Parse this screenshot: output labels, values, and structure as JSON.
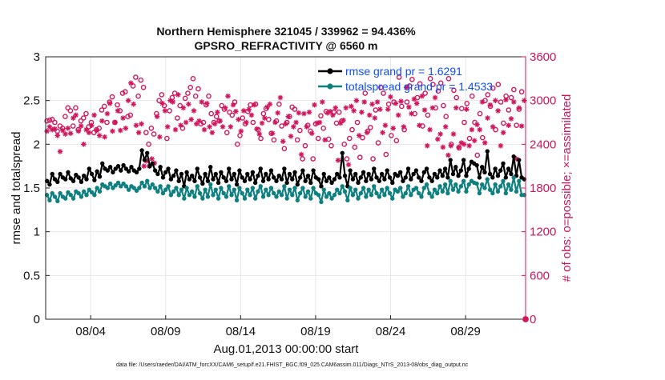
{
  "chart_data": {
    "type": "line",
    "title_line1": "Northern Hemisphere 321045 / 339962 = 94.436%",
    "title_line2": "GPSRO_REFRACTIVITY @ 6560 m",
    "xlabel": "Aug.01,2013 00:00:00 start",
    "ylabel_left": "rmse and totalspread",
    "ylabel_right": "# of obs: o=possible; ×=assimilated",
    "footer": "data file: /Users/raeder/DAI/ATM_forcXX/CAM6_setup/f.e21.FHIST_BGC.f09_025.CAM6assim.011/Diags_NTrS_2013-08/obs_diag_output.nc",
    "xlim": [
      0,
      32
    ],
    "ylim_left": [
      0,
      3
    ],
    "ylim_right": [
      0,
      3600
    ],
    "x_ticks": [
      3,
      8,
      13,
      18,
      23,
      28
    ],
    "x_tick_labels": [
      "08/04",
      "08/09",
      "08/14",
      "08/19",
      "08/24",
      "08/29"
    ],
    "y_ticks_left": [
      0,
      0.5,
      1,
      1.5,
      2,
      2.5,
      3
    ],
    "y_tick_labels_left": [
      "0",
      "0.5",
      "1",
      "1.5",
      "2",
      "2.5",
      "3"
    ],
    "y_ticks_right": [
      0,
      600,
      1200,
      1800,
      2400,
      3000,
      3600
    ],
    "y_tick_labels_right": [
      "0",
      "600",
      "1200",
      "1800",
      "2400",
      "3000",
      "3600"
    ],
    "legend_position": "top-right",
    "colors": {
      "rmse": "#000000",
      "spread": "#0f8080",
      "obs": "#d0175d",
      "grid": "#e6e6e6",
      "legend_text": "#0c4dff"
    },
    "series": [
      {
        "name": "rmse grand pr = 1.6291",
        "axis": "left",
        "style": "line-dot",
        "values": [
          1.58,
          1.54,
          1.66,
          1.6,
          1.57,
          1.66,
          1.62,
          1.6,
          1.68,
          1.61,
          1.58,
          1.65,
          1.62,
          1.57,
          1.64,
          1.6,
          1.72,
          1.66,
          1.59,
          1.69,
          1.63,
          1.78,
          1.72,
          1.7,
          1.74,
          1.68,
          1.72,
          1.75,
          1.7,
          1.76,
          1.72,
          1.69,
          1.74,
          1.7,
          1.68,
          1.72,
          1.93,
          1.82,
          1.9,
          1.75,
          1.78,
          1.7,
          1.66,
          1.74,
          1.62,
          1.68,
          1.72,
          1.6,
          1.64,
          1.7,
          1.58,
          1.66,
          1.52,
          1.68,
          1.6,
          1.64,
          1.58,
          1.72,
          1.62,
          1.55,
          1.66,
          1.58,
          1.74,
          1.6,
          1.66,
          1.56,
          1.68,
          1.62,
          1.58,
          1.72,
          1.6,
          1.66,
          1.54,
          1.7,
          1.62,
          1.58,
          1.66,
          1.6,
          1.68,
          1.56,
          1.64,
          1.72,
          1.58,
          1.66,
          1.6,
          1.7,
          1.62,
          1.58,
          1.64,
          1.6,
          1.72,
          1.56,
          1.66,
          1.6,
          1.68,
          1.54,
          1.62,
          1.7,
          1.58,
          1.64,
          1.56,
          1.7,
          1.62,
          1.6,
          1.52,
          1.66,
          1.58,
          1.62,
          1.56,
          1.6,
          1.66,
          1.62,
          1.9,
          1.64,
          1.52,
          1.7,
          1.6,
          1.66,
          1.56,
          1.62,
          1.68,
          1.58,
          1.66,
          1.6,
          1.72,
          1.62,
          1.58,
          1.66,
          1.6,
          1.7,
          1.62,
          1.56,
          1.66,
          1.64,
          1.68,
          1.58,
          1.62,
          1.72,
          1.6,
          1.66,
          1.7,
          1.62,
          1.58,
          1.68,
          1.72,
          1.62,
          1.58,
          1.66,
          1.62,
          1.7,
          1.64,
          1.72,
          1.62,
          1.82,
          1.66,
          1.74,
          1.64,
          1.7,
          1.82,
          1.64,
          1.72,
          1.8,
          1.78,
          1.76,
          1.62,
          1.74,
          1.68,
          1.92,
          1.66,
          1.62,
          1.72,
          1.64,
          1.7,
          1.78,
          1.62,
          1.72,
          1.66,
          1.86,
          1.64,
          1.82,
          1.62,
          1.6
        ]
      },
      {
        "name": "totalspread grand pr = 1.4533",
        "axis": "left",
        "style": "line-dot",
        "values": [
          1.42,
          1.36,
          1.44,
          1.4,
          1.35,
          1.44,
          1.4,
          1.38,
          1.45,
          1.42,
          1.38,
          1.46,
          1.44,
          1.4,
          1.46,
          1.42,
          1.48,
          1.45,
          1.42,
          1.5,
          1.46,
          1.54,
          1.52,
          1.5,
          1.55,
          1.5,
          1.53,
          1.56,
          1.52,
          1.55,
          1.52,
          1.48,
          1.52,
          1.5,
          1.47,
          1.5,
          1.56,
          1.52,
          1.58,
          1.5,
          1.54,
          1.5,
          1.46,
          1.52,
          1.44,
          1.48,
          1.52,
          1.42,
          1.46,
          1.5,
          1.42,
          1.48,
          1.38,
          1.5,
          1.42,
          1.46,
          1.4,
          1.52,
          1.44,
          1.38,
          1.48,
          1.4,
          1.54,
          1.42,
          1.48,
          1.38,
          1.5,
          1.44,
          1.4,
          1.52,
          1.42,
          1.48,
          1.36,
          1.5,
          1.44,
          1.38,
          1.48,
          1.42,
          1.5,
          1.38,
          1.46,
          1.52,
          1.4,
          1.48,
          1.42,
          1.5,
          1.44,
          1.4,
          1.46,
          1.42,
          1.52,
          1.38,
          1.48,
          1.42,
          1.5,
          1.36,
          1.44,
          1.5,
          1.4,
          1.46,
          1.38,
          1.5,
          1.44,
          1.42,
          1.34,
          1.48,
          1.4,
          1.44,
          1.38,
          1.42,
          1.48,
          1.44,
          1.52,
          1.46,
          1.36,
          1.5,
          1.42,
          1.48,
          1.38,
          1.44,
          1.5,
          1.4,
          1.48,
          1.42,
          1.52,
          1.44,
          1.4,
          1.48,
          1.42,
          1.5,
          1.44,
          1.38,
          1.48,
          1.46,
          1.5,
          1.4,
          1.44,
          1.52,
          1.42,
          1.48,
          1.5,
          1.44,
          1.4,
          1.5,
          1.54,
          1.44,
          1.4,
          1.48,
          1.44,
          1.52,
          1.46,
          1.54,
          1.44,
          1.58,
          1.48,
          1.54,
          1.46,
          1.52,
          1.58,
          1.46,
          1.54,
          1.58,
          1.56,
          1.55,
          1.44,
          1.54,
          1.5,
          1.6,
          1.48,
          1.44,
          1.54,
          1.46,
          1.52,
          1.58,
          1.44,
          1.54,
          1.48,
          1.62,
          1.46,
          1.58,
          1.42,
          1.42
        ]
      },
      {
        "name": "possible",
        "axis": "right",
        "style": "circle",
        "values": [
          2720,
          2730,
          2740,
          2700,
          2580,
          2650,
          2620,
          2780,
          2900,
          2860,
          2650,
          2900,
          2600,
          2720,
          2760,
          2820,
          2640,
          2700,
          2560,
          2600,
          2620,
          2870,
          2920,
          2700,
          2980,
          3050,
          2700,
          2940,
          2860,
          3100,
          3120,
          2780,
          2800,
          3200,
          3320,
          3060,
          3280,
          3180,
          2560,
          2400,
          2620,
          2540,
          2820,
          3000,
          3080,
          2930,
          2480,
          2860,
          3040,
          3100,
          2760,
          2930,
          2620,
          3030,
          3100,
          3180,
          3300,
          3060,
          3160,
          2680,
          2700,
          2940,
          3060,
          2820,
          2700,
          2780,
          2720,
          2930,
          2880,
          2560,
          2840,
          2800,
          2980,
          2400,
          2520,
          2760,
          2680,
          2850,
          2940,
          2700,
          2950,
          2600,
          2480,
          2820,
          2890,
          2740,
          2550,
          2460,
          2720,
          2950,
          2650,
          2340,
          2700,
          2780,
          2910,
          2880,
          2460,
          2590,
          2200,
          2380,
          2660,
          2580,
          2200,
          2680,
          2480,
          2790,
          2620,
          2850,
          2470,
          2380,
          2840,
          2690,
          2840,
          2720,
          2400,
          2200,
          2480,
          2600,
          2360,
          2700,
          2220,
          2490,
          3100,
          2580,
          2630,
          2200,
          2870,
          2420,
          3180,
          3100,
          2260,
          2950,
          2520,
          2980,
          2450,
          3320,
          2920,
          2600,
          2980,
          3200,
          3290,
          2820,
          3040,
          3230,
          2650,
          3100,
          2800,
          3300,
          3220,
          2900,
          3130,
          3240,
          2930,
          2780,
          3300,
          2400,
          3140,
          3040,
          2350,
          2890,
          2700,
          2960,
          2480,
          3060,
          2700,
          2250,
          2820,
          2490,
          3000,
          3080,
          2920,
          3170,
          2600,
          3220,
          2980,
          2690,
          3060,
          2870,
          3040,
          3150,
          2660,
          2880,
          3120,
          0
        ]
      },
      {
        "name": "assimilated",
        "axis": "right",
        "style": "asterisk",
        "values": [
          2580,
          2640,
          2600,
          2610,
          2520,
          2300,
          2590,
          2540,
          2620,
          2550,
          2760,
          2800,
          2580,
          2650,
          2400,
          2600,
          2560,
          2660,
          2800,
          2590,
          2520,
          2720,
          2500,
          2820,
          2960,
          2580,
          2700,
          2860,
          2590,
          2760,
          2620,
          3000,
          3240,
          2950,
          2660,
          2560,
          2680,
          2100,
          2170,
          2100,
          2200,
          2140,
          2780,
          2500,
          2960,
          2860,
          2640,
          3000,
          2980,
          2600,
          3080,
          2660,
          2900,
          2700,
          2950,
          2740,
          2860,
          2680,
          2720,
          2980,
          2600,
          2960,
          2640,
          2560,
          2680,
          2840,
          2720,
          2640,
          2900,
          3060,
          2640,
          2940,
          2850,
          2740,
          2580,
          2860,
          2700,
          2880,
          2800,
          2940,
          2610,
          2540,
          2690,
          2760,
          2910,
          2950,
          2550,
          2700,
          2830,
          3040,
          2440,
          2680,
          2780,
          2510,
          2640,
          2700,
          2830,
          2260,
          2820,
          2640,
          2840,
          2550,
          2940,
          2690,
          2700,
          2980,
          2460,
          2830,
          2850,
          2800,
          2900,
          2180,
          2690,
          2730,
          2900,
          2120,
          2920,
          2860,
          3000,
          2520,
          2840,
          2980,
          2560,
          2800,
          2950,
          2760,
          2980,
          2880,
          2560,
          2660,
          2880,
          3050,
          2620,
          2960,
          2800,
          2990,
          2640,
          3180,
          2910,
          2820,
          3020,
          2960,
          2660,
          3060,
          2870,
          2380,
          2600,
          2900,
          3040,
          2470,
          2540,
          2360,
          2640,
          2250,
          2380,
          2540,
          2900,
          2360,
          2420,
          2400,
          2880,
          2380,
          2600,
          2450,
          2670,
          2600,
          2980,
          2420,
          2760,
          2940,
          2640,
          3000,
          2860,
          2380,
          2560,
          3010,
          2660,
          2750,
          2980,
          2200,
          2900,
          2650,
          3000
        ]
      }
    ]
  }
}
